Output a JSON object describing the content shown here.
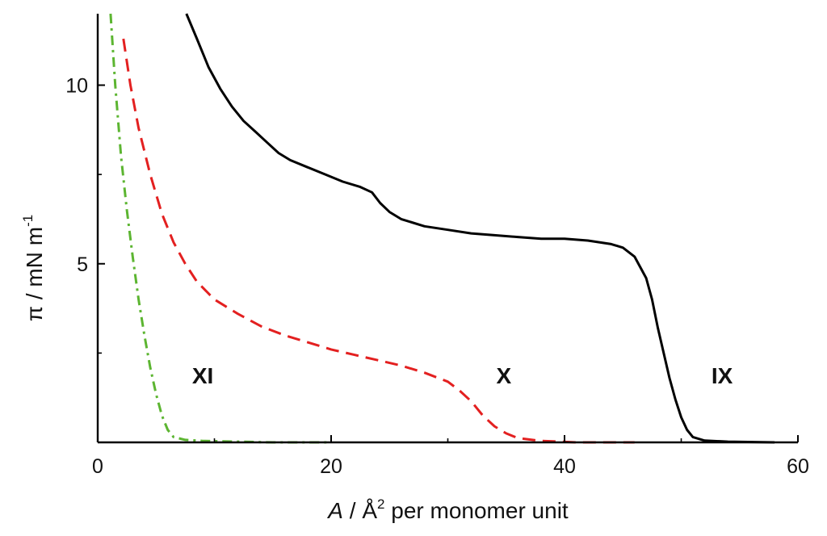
{
  "chart_data": {
    "type": "line",
    "xlabel_italic": "A",
    "xlabel_sep": " / ",
    "xlabel_unit": "Å",
    "xlabel_sup": "2",
    "xlabel_rest": " per monomer unit",
    "ylabel_main": "π / mN m",
    "ylabel_sup": "-1",
    "xlim": [
      0,
      60
    ],
    "ylim": [
      0,
      12
    ],
    "xticks": [
      0,
      20,
      40,
      60
    ],
    "xtick_labels": [
      "0",
      "20",
      "40",
      "60"
    ],
    "yticks": [
      5,
      10
    ],
    "ytick_labels": [
      "5",
      "10"
    ],
    "grid": false,
    "series": [
      {
        "name": "IX",
        "color": "#000000",
        "style": "solid",
        "label_at": [
          53.5,
          1.65
        ],
        "points": [
          [
            7.6,
            12.0
          ],
          [
            8.5,
            11.3
          ],
          [
            9.5,
            10.5
          ],
          [
            10.5,
            9.9
          ],
          [
            11.5,
            9.4
          ],
          [
            12.5,
            9.0
          ],
          [
            13.5,
            8.7
          ],
          [
            14.5,
            8.4
          ],
          [
            15.5,
            8.1
          ],
          [
            16.5,
            7.9
          ],
          [
            18,
            7.7
          ],
          [
            19.5,
            7.5
          ],
          [
            21,
            7.3
          ],
          [
            22.5,
            7.15
          ],
          [
            23.5,
            7.0
          ],
          [
            24.2,
            6.7
          ],
          [
            25,
            6.45
          ],
          [
            26,
            6.25
          ],
          [
            28,
            6.05
          ],
          [
            30,
            5.95
          ],
          [
            32,
            5.85
          ],
          [
            34,
            5.8
          ],
          [
            36,
            5.75
          ],
          [
            38,
            5.7
          ],
          [
            40,
            5.7
          ],
          [
            42,
            5.65
          ],
          [
            44,
            5.55
          ],
          [
            45,
            5.45
          ],
          [
            46,
            5.2
          ],
          [
            47,
            4.6
          ],
          [
            47.5,
            4.0
          ],
          [
            48,
            3.2
          ],
          [
            48.5,
            2.5
          ],
          [
            49,
            1.8
          ],
          [
            49.5,
            1.2
          ],
          [
            50,
            0.7
          ],
          [
            50.5,
            0.35
          ],
          [
            51,
            0.15
          ],
          [
            52,
            0.05
          ],
          [
            54,
            0.02
          ],
          [
            58,
            0.0
          ]
        ]
      },
      {
        "name": "X",
        "color": "#e32020",
        "style": "dashed",
        "label_at": [
          34.8,
          1.65
        ],
        "points": [
          [
            2.2,
            11.3
          ],
          [
            2.8,
            10.0
          ],
          [
            3.5,
            8.8
          ],
          [
            4.5,
            7.5
          ],
          [
            5.5,
            6.4
          ],
          [
            6.5,
            5.6
          ],
          [
            7.5,
            5.0
          ],
          [
            8.5,
            4.5
          ],
          [
            10,
            4.0
          ],
          [
            12,
            3.6
          ],
          [
            14,
            3.25
          ],
          [
            16,
            3.0
          ],
          [
            18,
            2.8
          ],
          [
            20,
            2.6
          ],
          [
            22,
            2.45
          ],
          [
            24,
            2.3
          ],
          [
            26,
            2.15
          ],
          [
            28,
            1.95
          ],
          [
            30,
            1.7
          ],
          [
            31,
            1.45
          ],
          [
            32,
            1.15
          ],
          [
            33,
            0.75
          ],
          [
            34,
            0.45
          ],
          [
            35,
            0.25
          ],
          [
            36,
            0.12
          ],
          [
            38,
            0.04
          ],
          [
            41,
            0.0
          ],
          [
            46,
            0.0
          ]
        ]
      },
      {
        "name": "XI",
        "color": "#5cb531",
        "style": "dashdot",
        "label_at": [
          9.0,
          1.65
        ],
        "points": [
          [
            1.1,
            12.0
          ],
          [
            1.5,
            10.0
          ],
          [
            2.0,
            8.0
          ],
          [
            2.5,
            6.5
          ],
          [
            3.0,
            5.2
          ],
          [
            3.5,
            4.0
          ],
          [
            4.0,
            3.0
          ],
          [
            4.5,
            2.1
          ],
          [
            5.0,
            1.35
          ],
          [
            5.5,
            0.75
          ],
          [
            6.0,
            0.35
          ],
          [
            6.5,
            0.15
          ],
          [
            7.5,
            0.07
          ],
          [
            9,
            0.04
          ],
          [
            12,
            0.02
          ],
          [
            15,
            0.0
          ],
          [
            20,
            0.0
          ]
        ]
      }
    ]
  }
}
